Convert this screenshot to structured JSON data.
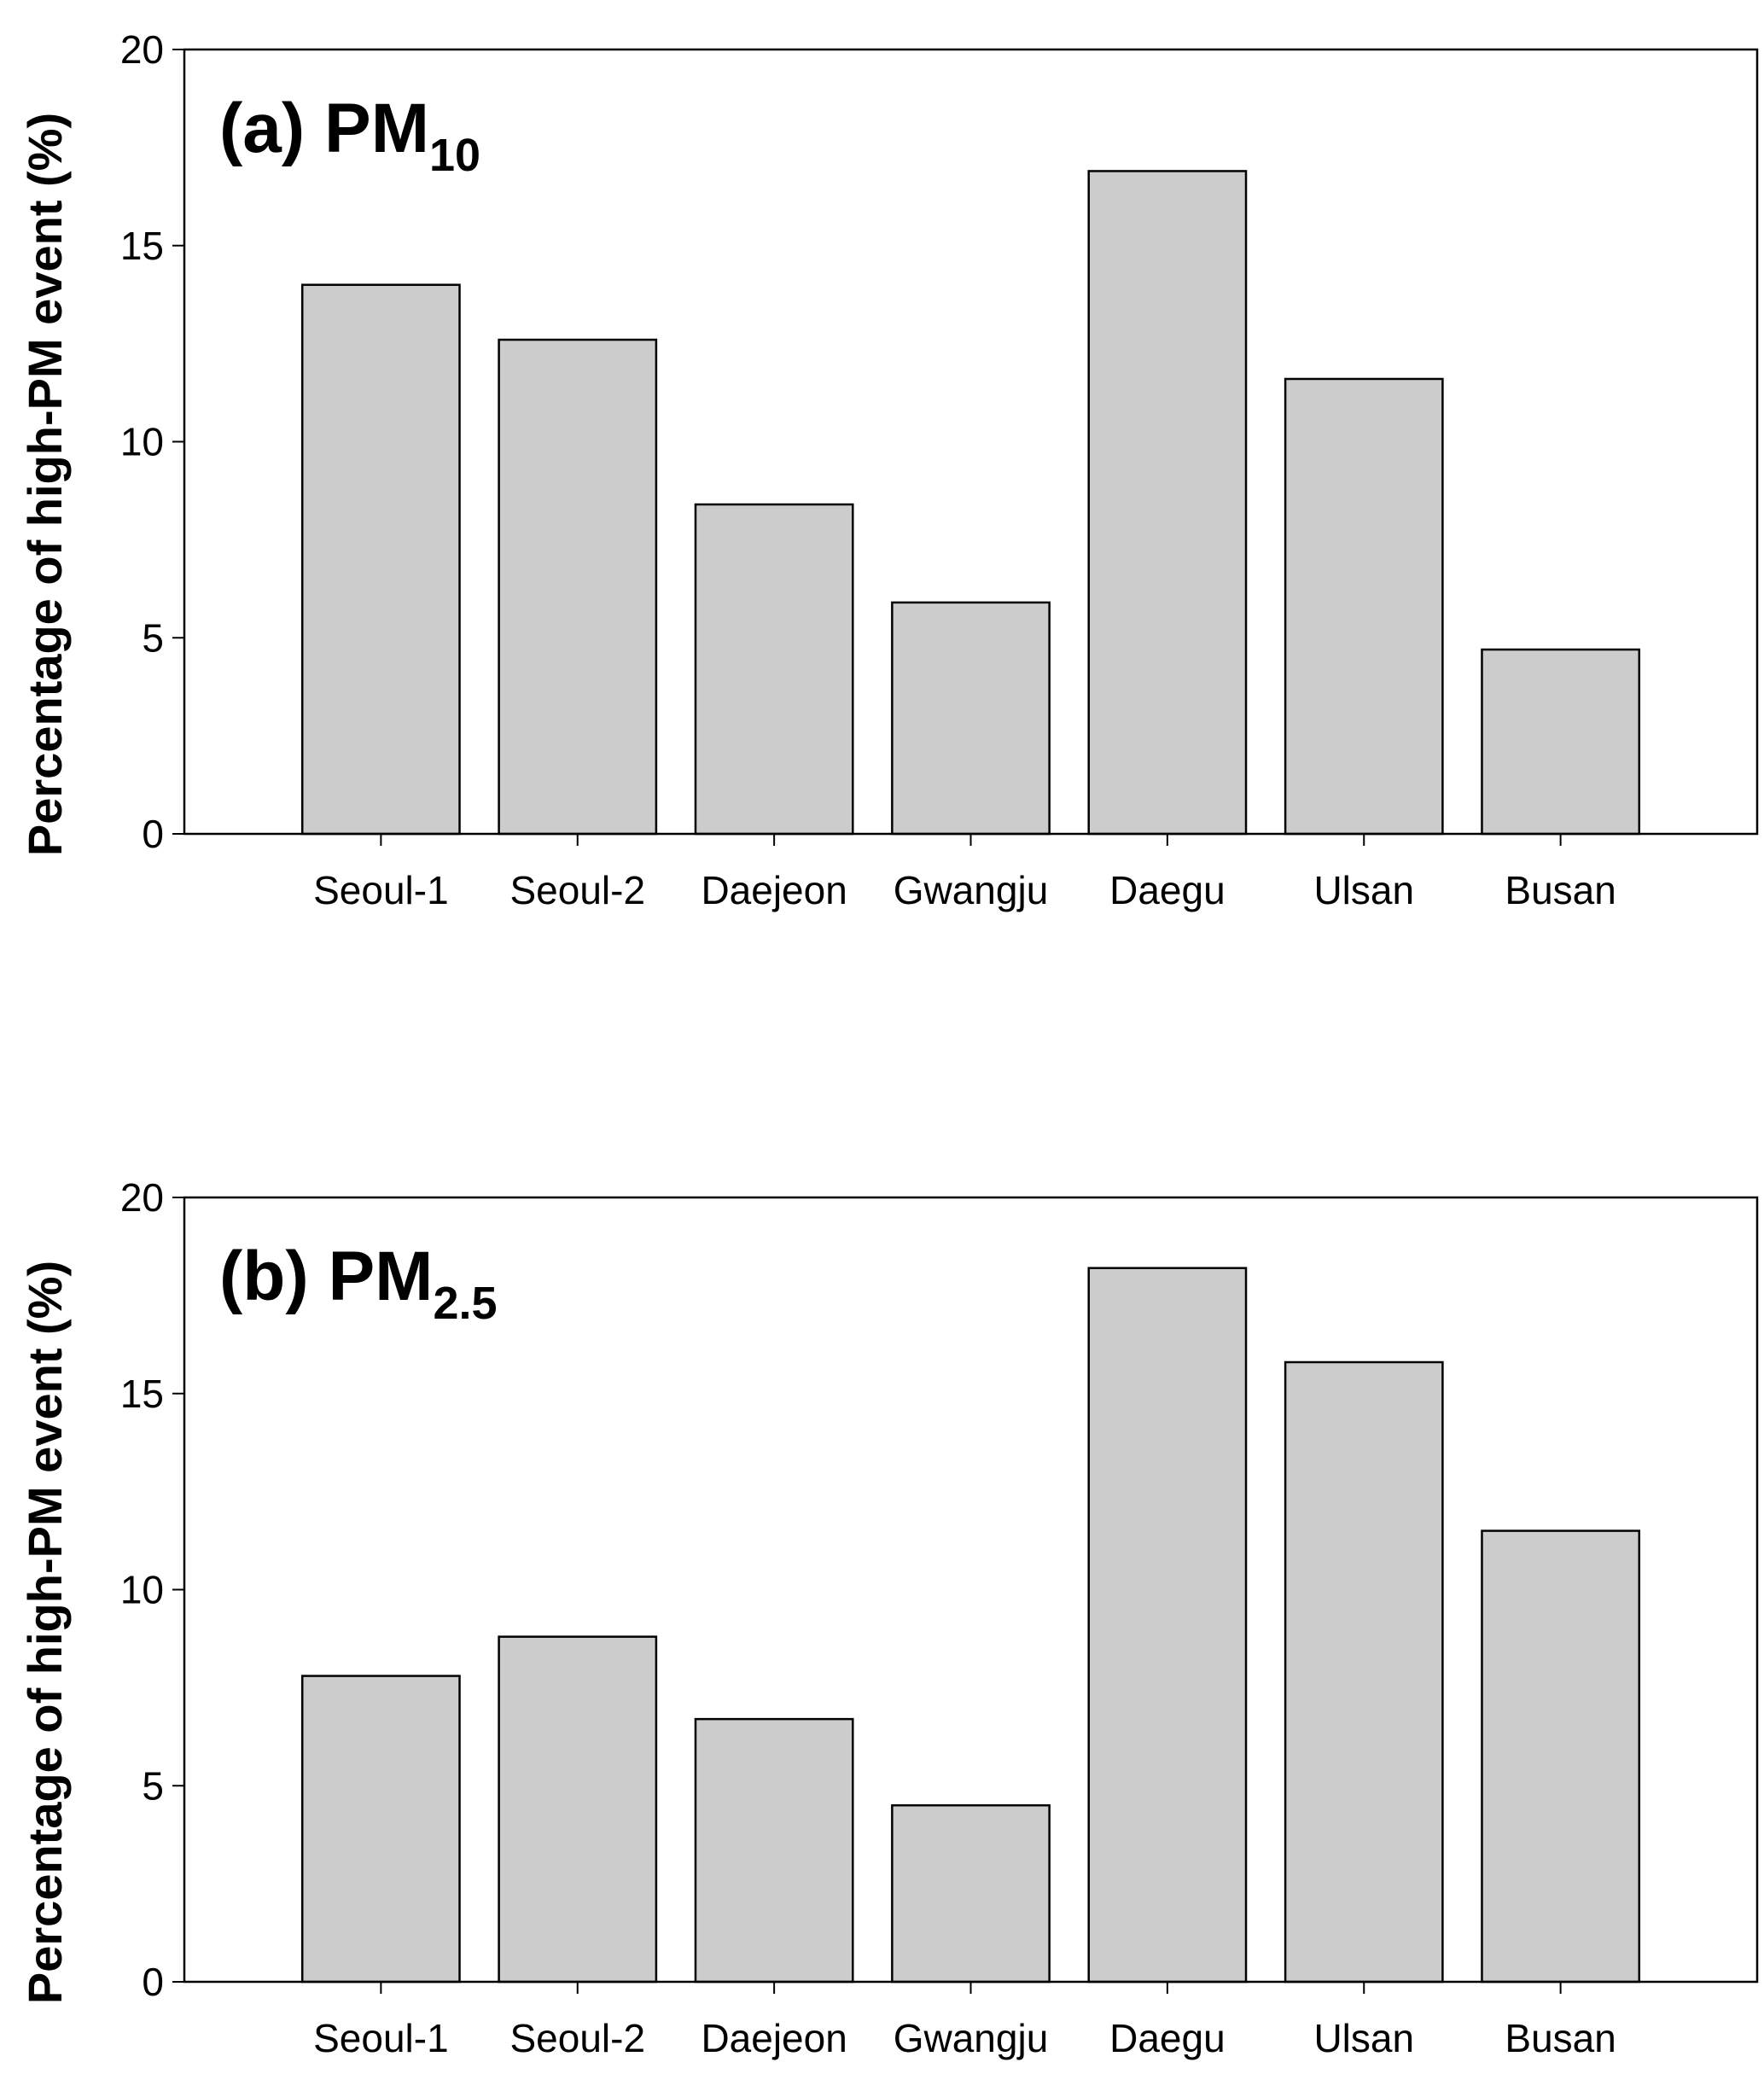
{
  "chart_data": [
    {
      "type": "bar",
      "title": "(a) PM",
      "title_subscript": "10",
      "y_label": "Percentage of high-PM event (%)",
      "categories": [
        "Seoul-1",
        "Seoul-2",
        "Daejeon",
        "Gwangju",
        "Daegu",
        "Ulsan",
        "Busan"
      ],
      "values": [
        14.0,
        12.6,
        8.4,
        5.9,
        16.9,
        11.6,
        4.7
      ],
      "color": "#cccccc",
      "ylim": [
        0,
        20
      ],
      "yticks": [
        0,
        5,
        10,
        15,
        20
      ]
    },
    {
      "type": "bar",
      "title": "(b) PM",
      "title_subscript": "2.5",
      "y_label": "Percentage of high-PM event (%)",
      "categories": [
        "Seoul-1",
        "Seoul-2",
        "Daejeon",
        "Gwangju",
        "Daegu",
        "Ulsan",
        "Busan"
      ],
      "values": [
        7.8,
        8.8,
        6.7,
        4.5,
        18.2,
        15.8,
        11.5
      ],
      "color": "#cccccc",
      "ylim": [
        0,
        20
      ],
      "yticks": [
        0,
        5,
        10,
        15,
        20
      ]
    }
  ]
}
